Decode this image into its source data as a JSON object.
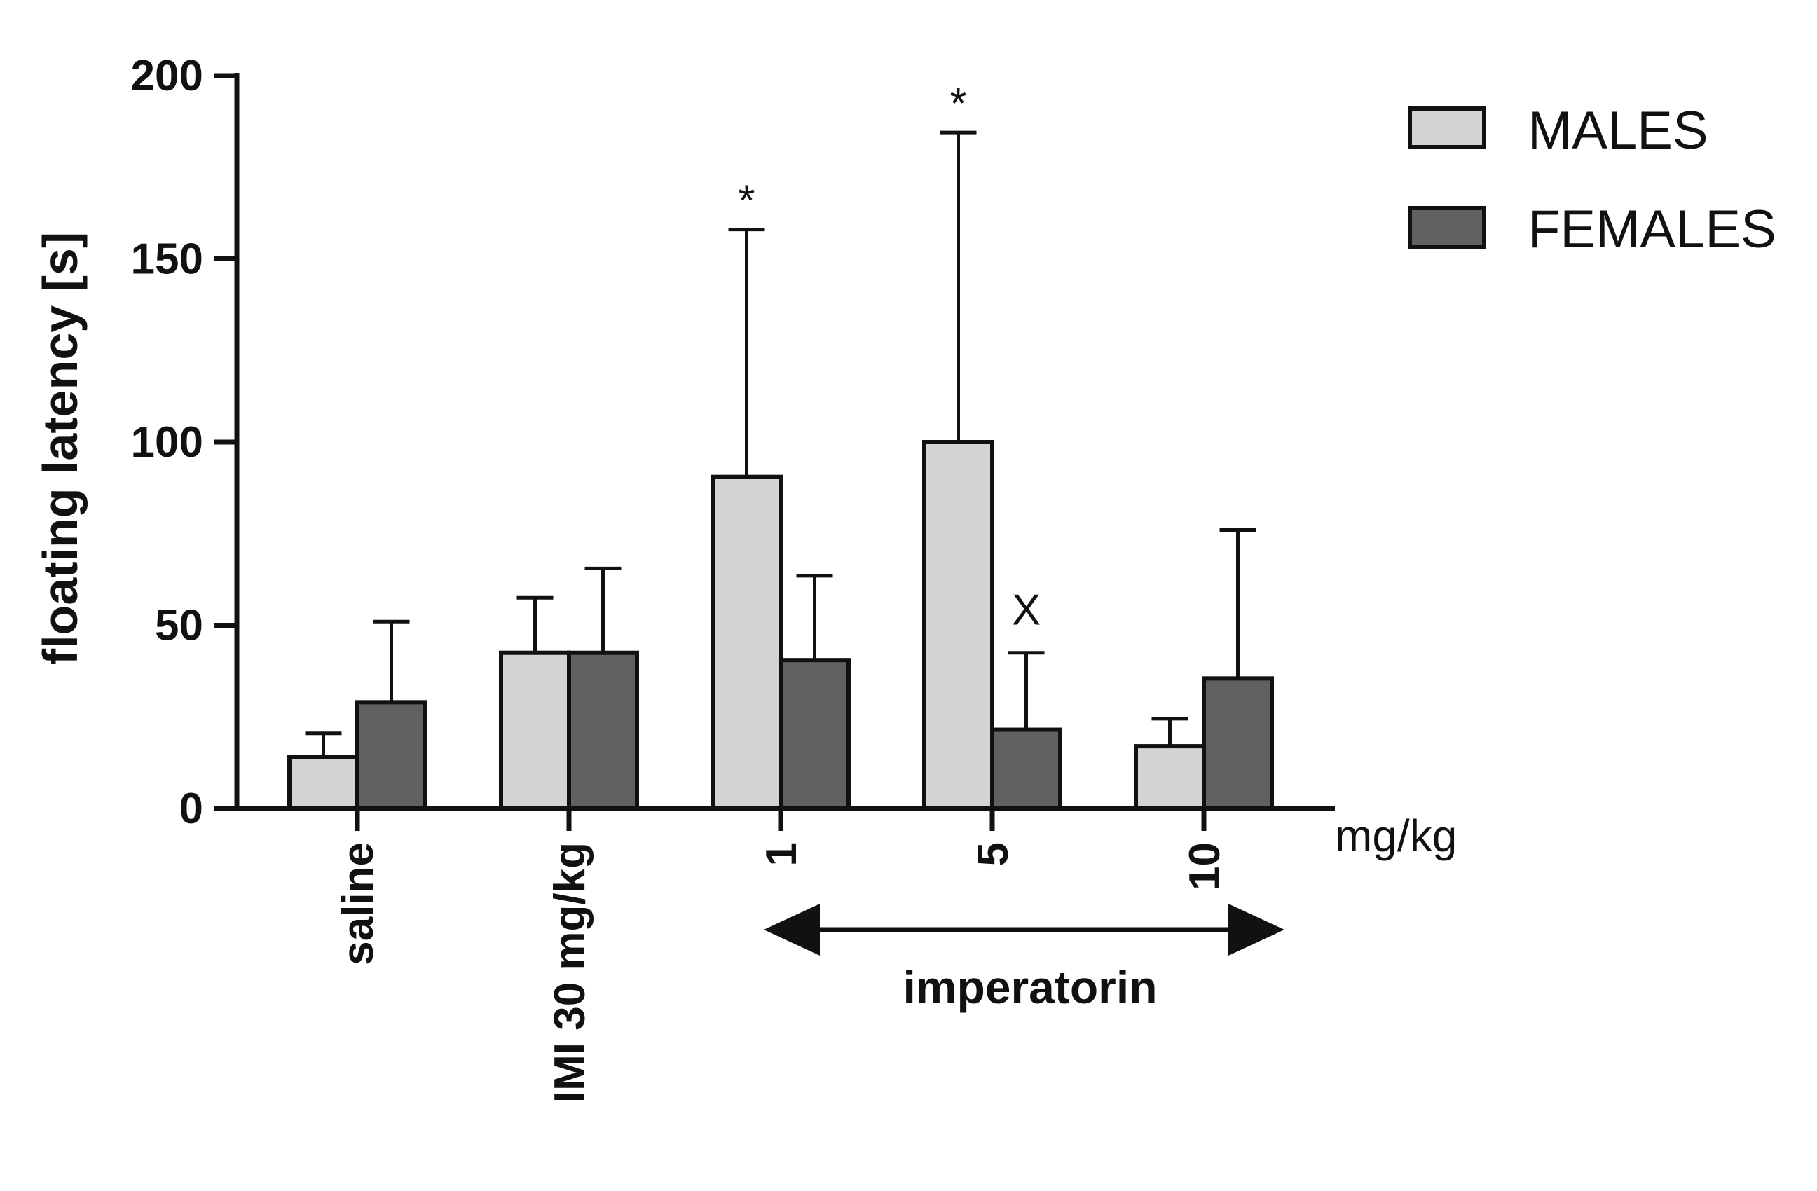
{
  "chart_data": {
    "type": "bar",
    "ylabel": "floating latency [s]",
    "ylim": [
      0,
      200
    ],
    "yticks": [
      0,
      50,
      100,
      150,
      200
    ],
    "categories": [
      "saline",
      "IMI 30 mg/kg",
      "1",
      "5",
      "10"
    ],
    "x_unit_label": "mg/kg",
    "group_label": "imperatorin",
    "series": [
      {
        "name": "MALES",
        "color": "#d4d4d4",
        "values": [
          14,
          42.5,
          90.5,
          100,
          17
        ],
        "errors": [
          6.5,
          15,
          67.5,
          84.5,
          7.5
        ],
        "annotations": [
          "",
          "",
          "*",
          "*",
          ""
        ]
      },
      {
        "name": "FEMALES",
        "color": "#616161",
        "values": [
          29,
          42.5,
          40.5,
          21.5,
          35.5
        ],
        "errors": [
          22,
          23,
          23,
          21,
          40.5
        ],
        "annotations": [
          "",
          "",
          "",
          "X",
          ""
        ]
      }
    ],
    "legend_position": "top-right"
  }
}
